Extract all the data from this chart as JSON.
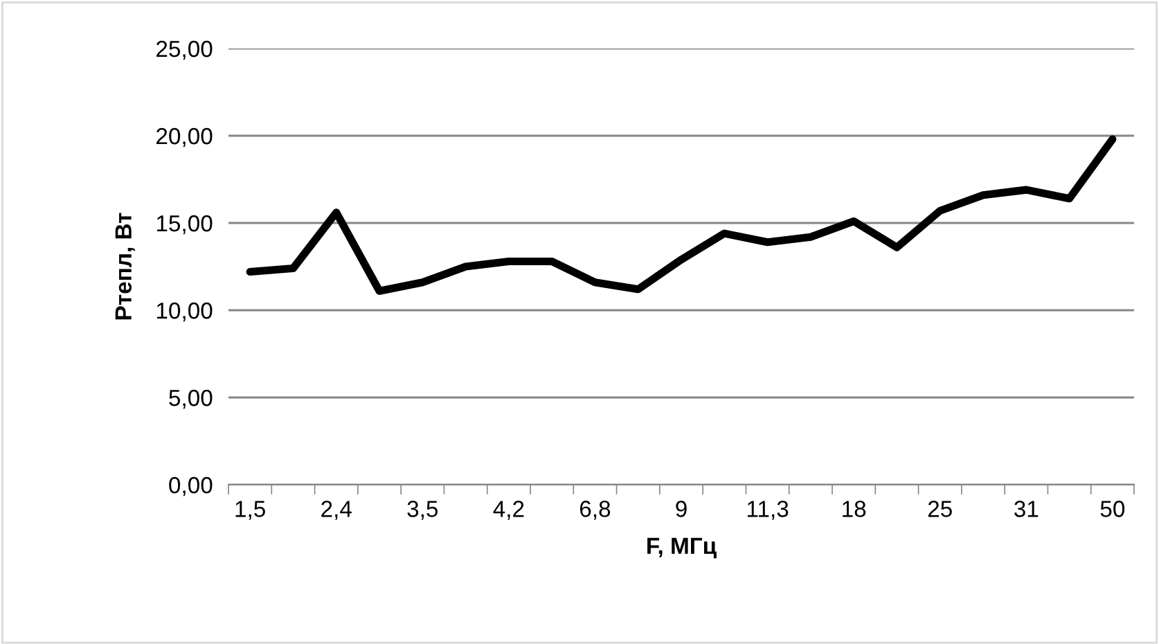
{
  "chart_data": {
    "type": "line",
    "xlabel": "F, МГц",
    "ylabel": "Ртепл, Вт",
    "categories": [
      "1,5",
      null,
      "2,4",
      null,
      "3,5",
      null,
      "4,2",
      null,
      "6,8",
      null,
      "9",
      null,
      "11,3",
      null,
      "18",
      null,
      "25",
      null,
      "31",
      null,
      "50"
    ],
    "series": [
      {
        "color": "#000000",
        "values": [
          12.2,
          12.4,
          15.6,
          11.1,
          11.6,
          12.5,
          12.8,
          12.8,
          11.6,
          11.2,
          12.9,
          14.4,
          13.9,
          14.2,
          15.1,
          13.6,
          15.7,
          16.6,
          16.9,
          16.4,
          19.8
        ]
      }
    ],
    "ylim": [
      0,
      25
    ],
    "yticks": [
      {
        "value": 0,
        "label": "0,00"
      },
      {
        "value": 5,
        "label": "5,00"
      },
      {
        "value": 10,
        "label": "10,00"
      },
      {
        "value": 15,
        "label": "15,00"
      },
      {
        "value": 20,
        "label": "20,00"
      },
      {
        "value": 25,
        "label": "25,00"
      }
    ],
    "grid": "y",
    "marker": "none",
    "line_style": "solid"
  }
}
